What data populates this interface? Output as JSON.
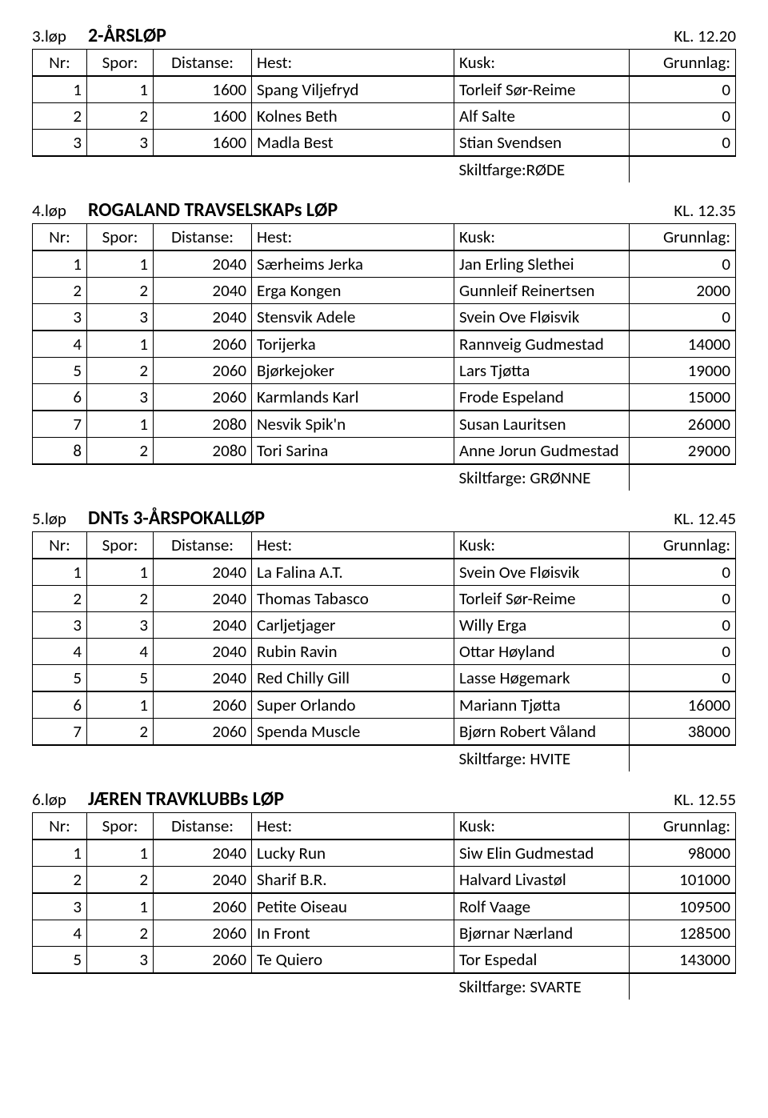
{
  "races": [
    {
      "num_label": "3.løp",
      "title": "2-ÅRSLØP",
      "time": "KL. 12.20",
      "headers": {
        "nr": "Nr:",
        "spor": "Spor:",
        "dist": "Distanse:",
        "hest": "Hest:",
        "kusk": "Kusk:",
        "gr": "Grunnlag:"
      },
      "rows": [
        {
          "nr": "1",
          "spor": "1",
          "dist": "1600",
          "hest": "Spang Viljefryd",
          "kusk": "Torleif Sør-Reime",
          "gr": "0"
        },
        {
          "nr": "2",
          "spor": "2",
          "dist": "1600",
          "hest": "Kolnes Beth",
          "kusk": "Alf Salte",
          "gr": "0"
        },
        {
          "nr": "3",
          "spor": "3",
          "dist": "1600",
          "hest": "Madla Best",
          "kusk": "Stian Svendsen",
          "gr": "0"
        }
      ],
      "thick_before": [
        0
      ],
      "thick_after": [
        2
      ],
      "skilt": "Skiltfarge:RØDE"
    },
    {
      "num_label": "4.løp",
      "title": "ROGALAND TRAVSELSKAPs LØP",
      "time": "KL. 12.35",
      "headers": {
        "nr": "Nr:",
        "spor": "Spor:",
        "dist": "Distanse:",
        "hest": "Hest:",
        "kusk": "Kusk:",
        "gr": "Grunnlag:"
      },
      "rows": [
        {
          "nr": "1",
          "spor": "1",
          "dist": "2040",
          "hest": "Særheims Jerka",
          "kusk": "Jan Erling Slethei",
          "gr": "0"
        },
        {
          "nr": "2",
          "spor": "2",
          "dist": "2040",
          "hest": "Erga Kongen",
          "kusk": "Gunnleif Reinertsen",
          "gr": "2000"
        },
        {
          "nr": "3",
          "spor": "3",
          "dist": "2040",
          "hest": "Stensvik Adele",
          "kusk": "Svein Ove Fløisvik",
          "gr": "0"
        },
        {
          "nr": "4",
          "spor": "1",
          "dist": "2060",
          "hest": "Torijerka",
          "kusk": "Rannveig Gudmestad",
          "gr": "14000"
        },
        {
          "nr": "5",
          "spor": "2",
          "dist": "2060",
          "hest": "Bjørkejoker",
          "kusk": "Lars Tjøtta",
          "gr": "19000"
        },
        {
          "nr": "6",
          "spor": "3",
          "dist": "2060",
          "hest": "Karmlands Karl",
          "kusk": "Frode Espeland",
          "gr": "15000"
        },
        {
          "nr": "7",
          "spor": "1",
          "dist": "2080",
          "hest": "Nesvik Spik'n",
          "kusk": "Susan Lauritsen",
          "gr": "26000"
        },
        {
          "nr": "8",
          "spor": "2",
          "dist": "2080",
          "hest": "Tori Sarina",
          "kusk": "Anne Jorun Gudmestad",
          "gr": "29000"
        }
      ],
      "thick_before": [
        0,
        3,
        6
      ],
      "thick_after": [
        7
      ],
      "skilt": "Skiltfarge: GRØNNE"
    },
    {
      "num_label": "5.løp",
      "title": "DNTs 3-ÅRSPOKALLØP",
      "time": "KL. 12.45",
      "headers": {
        "nr": "Nr:",
        "spor": "Spor:",
        "dist": "Distanse:",
        "hest": "Hest:",
        "kusk": "Kusk:",
        "gr": "Grunnlag:"
      },
      "rows": [
        {
          "nr": "1",
          "spor": "1",
          "dist": "2040",
          "hest": "La Falina A.T.",
          "kusk": "Svein Ove Fløisvik",
          "gr": "0"
        },
        {
          "nr": "2",
          "spor": "2",
          "dist": "2040",
          "hest": "Thomas Tabasco",
          "kusk": "Torleif Sør-Reime",
          "gr": "0"
        },
        {
          "nr": "3",
          "spor": "3",
          "dist": "2040",
          "hest": "Carljetjager",
          "kusk": "Willy Erga",
          "gr": "0"
        },
        {
          "nr": "4",
          "spor": "4",
          "dist": "2040",
          "hest": "Rubin Ravin",
          "kusk": "Ottar Høyland",
          "gr": "0"
        },
        {
          "nr": "5",
          "spor": "5",
          "dist": "2040",
          "hest": "Red Chilly Gill",
          "kusk": "Lasse Høgemark",
          "gr": "0"
        },
        {
          "nr": "6",
          "spor": "1",
          "dist": "2060",
          "hest": "Super Orlando",
          "kusk": "Mariann Tjøtta",
          "gr": "16000"
        },
        {
          "nr": "7",
          "spor": "2",
          "dist": "2060",
          "hest": "Spenda Muscle",
          "kusk": "Bjørn Robert Våland",
          "gr": "38000"
        }
      ],
      "thick_before": [
        0,
        5
      ],
      "thick_after": [
        6
      ],
      "skilt": "Skiltfarge: HVITE"
    },
    {
      "num_label": "6.løp",
      "title": "JÆREN TRAVKLUBBs LØP",
      "time": "KL. 12.55",
      "headers": {
        "nr": "Nr:",
        "spor": "Spor:",
        "dist": "Distanse:",
        "hest": "Hest:",
        "kusk": "Kusk:",
        "gr": "Grunnlag:"
      },
      "rows": [
        {
          "nr": "1",
          "spor": "1",
          "dist": "2040",
          "hest": "Lucky Run",
          "kusk": "Siw Elin Gudmestad",
          "gr": "98000"
        },
        {
          "nr": "2",
          "spor": "2",
          "dist": "2040",
          "hest": "Sharif B.R.",
          "kusk": "Halvard Livastøl",
          "gr": "101000"
        },
        {
          "nr": "3",
          "spor": "1",
          "dist": "2060",
          "hest": "Petite Oiseau",
          "kusk": "Rolf Vaage",
          "gr": "109500"
        },
        {
          "nr": "4",
          "spor": "2",
          "dist": "2060",
          "hest": "In Front",
          "kusk": "Bjørnar Nærland",
          "gr": "128500"
        },
        {
          "nr": "5",
          "spor": "3",
          "dist": "2060",
          "hest": "Te Quiero",
          "kusk": "Tor Espedal",
          "gr": "143000"
        }
      ],
      "thick_before": [
        0,
        2
      ],
      "thick_after": [
        4
      ],
      "skilt": "Skiltfarge: SVARTE"
    }
  ]
}
